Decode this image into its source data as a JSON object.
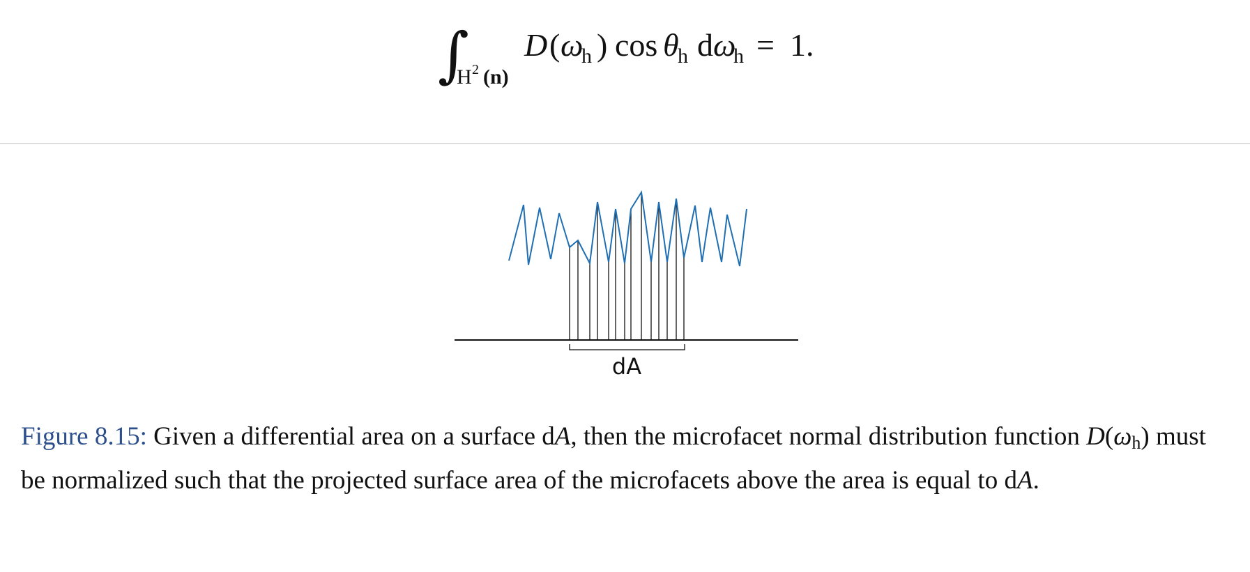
{
  "equation": {
    "integral_sign": "∫",
    "domain_base": "H",
    "domain_sup": "2",
    "domain_arg": "(n)",
    "d_func": "D",
    "omega": "ω",
    "sub_h": "h",
    "cos": "cos",
    "theta": "θ",
    "d": "d",
    "equals": "=",
    "rhs": "1."
  },
  "diagram": {
    "area_label": "dA",
    "microfacet_color": "#1f6fb2",
    "line_color": "#111111"
  },
  "caption": {
    "label": "Figure 8.15:",
    "text_1": " Given a differential area on a surface ",
    "dA_d": "d",
    "dA_A": "A",
    "text_2": ", then the microfacet normal distribution function ",
    "D": "D",
    "paren_open": "(",
    "omega": "ω",
    "sub_h": "h",
    "paren_close": ")",
    "text_3": " must be normalized such that the projected surface area of the microfacets above the area is equal to ",
    "dA2_d": "d",
    "dA2_A": "A",
    "text_4": "."
  }
}
